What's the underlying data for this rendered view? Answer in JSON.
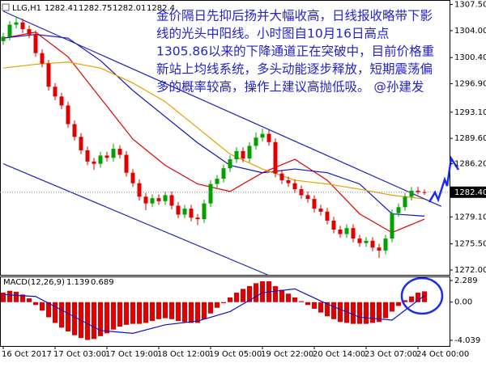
{
  "chart_data": [
    {
      "type": "candlestick",
      "title": "LLG,H1",
      "up_color": "#00a000",
      "down_color": "#e00000",
      "open": [
        1302.6,
        1303.2,
        1304.8,
        1305.1,
        1304.2,
        1303.5,
        1301.0,
        1299.6,
        1296.5,
        1295.2,
        1294.0,
        1291.5,
        1289.8,
        1288.0,
        1286.5,
        1286.2,
        1287.3,
        1287.0,
        1288.2,
        1287.4,
        1285.0,
        1283.6,
        1281.8,
        1280.9,
        1281.6,
        1281.2,
        1282.0,
        1280.6,
        1279.4,
        1280.2,
        1279.0,
        1278.8,
        1280.9,
        1283.5,
        1284.2,
        1285.6,
        1286.8,
        1287.9,
        1286.9,
        1288.6,
        1289.7,
        1290.2,
        1289.1,
        1284.9,
        1284.0,
        1283.6,
        1282.8,
        1282.0,
        1281.5,
        1280.2,
        1279.8,
        1278.6,
        1277.4,
        1276.8,
        1277.6,
        1276.2,
        1275.6,
        1275.9,
        1275.0,
        1274.6,
        1276.2,
        1279.6,
        1280.4,
        1281.8,
        1282.6,
        1282.41
      ],
      "high": [
        1303.7,
        1305.3,
        1305.86,
        1305.6,
        1304.7,
        1304.0,
        1301.5,
        1300.1,
        1297.0,
        1295.7,
        1294.5,
        1292.0,
        1290.3,
        1288.5,
        1287.0,
        1287.8,
        1287.8,
        1288.9,
        1288.7,
        1287.9,
        1285.5,
        1284.1,
        1282.3,
        1282.1,
        1282.1,
        1282.5,
        1282.5,
        1281.1,
        1280.7,
        1280.7,
        1279.5,
        1281.4,
        1284.0,
        1284.7,
        1286.1,
        1287.3,
        1288.4,
        1288.4,
        1289.1,
        1290.4,
        1290.9,
        1290.7,
        1289.6,
        1285.4,
        1284.5,
        1284.1,
        1283.3,
        1282.5,
        1282.0,
        1280.7,
        1280.3,
        1279.1,
        1277.9,
        1278.1,
        1278.1,
        1276.7,
        1276.4,
        1276.4,
        1275.5,
        1276.7,
        1280.1,
        1280.9,
        1282.3,
        1283.1,
        1283.1,
        1282.75
      ],
      "low": [
        1302.1,
        1302.7,
        1304.3,
        1303.7,
        1303.0,
        1300.5,
        1299.1,
        1296.0,
        1294.7,
        1293.5,
        1291.0,
        1289.3,
        1287.5,
        1286.0,
        1285.4,
        1285.7,
        1286.5,
        1286.5,
        1286.9,
        1284.5,
        1283.1,
        1281.3,
        1280.0,
        1280.4,
        1280.7,
        1280.7,
        1280.1,
        1278.9,
        1278.9,
        1278.5,
        1278.0,
        1278.3,
        1280.4,
        1283.0,
        1283.7,
        1285.1,
        1286.3,
        1286.4,
        1286.4,
        1288.1,
        1289.2,
        1288.6,
        1284.4,
        1283.5,
        1283.1,
        1282.3,
        1281.5,
        1281.0,
        1279.7,
        1279.3,
        1278.1,
        1276.9,
        1276.3,
        1276.3,
        1275.7,
        1275.1,
        1275.1,
        1274.5,
        1273.6,
        1274.1,
        1275.7,
        1279.1,
        1279.9,
        1281.3,
        1282.1,
        1282.01
      ],
      "close": [
        1303.2,
        1304.8,
        1305.1,
        1304.2,
        1303.5,
        1301.0,
        1299.6,
        1296.5,
        1295.2,
        1294.0,
        1291.5,
        1289.8,
        1288.0,
        1286.5,
        1286.2,
        1287.3,
        1287.0,
        1288.2,
        1287.4,
        1285.0,
        1283.6,
        1281.8,
        1280.9,
        1281.6,
        1281.2,
        1282.0,
        1280.6,
        1279.4,
        1280.2,
        1279.0,
        1278.8,
        1280.9,
        1283.5,
        1284.2,
        1285.6,
        1286.8,
        1287.9,
        1286.9,
        1288.6,
        1289.7,
        1290.2,
        1289.1,
        1284.9,
        1284.0,
        1283.6,
        1282.8,
        1282.0,
        1281.5,
        1280.2,
        1279.8,
        1278.6,
        1277.4,
        1276.8,
        1277.6,
        1276.2,
        1275.6,
        1275.9,
        1275.0,
        1274.6,
        1276.2,
        1279.6,
        1280.4,
        1281.8,
        1282.6,
        1282.41,
        1282.4
      ],
      "overlays": [
        {
          "color": "#e00000",
          "x": [
            0,
            5,
            10,
            15,
            20,
            25,
            30,
            35,
            40,
            45,
            50,
            55,
            60,
            65
          ],
          "values": [
            1303.0,
            1303.8,
            1300.5,
            1295.0,
            1289.5,
            1286.0,
            1283.5,
            1282.5,
            1285.0,
            1286.8,
            1284.0,
            1279.5,
            1277.0,
            1278.8
          ]
        },
        {
          "color": "#1010c0",
          "x": [
            0,
            5,
            10,
            15,
            20,
            25,
            30,
            35,
            40,
            45,
            50,
            55,
            60,
            65
          ],
          "values": [
            1303.0,
            1303.5,
            1303.0,
            1300.0,
            1296.0,
            1292.5,
            1289.0,
            1286.0,
            1285.0,
            1285.5,
            1285.0,
            1283.5,
            1279.5,
            1279.2
          ]
        },
        {
          "color": "#e8a000",
          "x": [
            0,
            5,
            10,
            15,
            20,
            25,
            30,
            35,
            40,
            45,
            50,
            55,
            60,
            65
          ],
          "values": [
            1299.0,
            1299.5,
            1299.8,
            1299.0,
            1297.0,
            1294.5,
            1291.0,
            1287.5,
            1285.5,
            1284.0,
            1283.5,
            1282.8,
            1282.0,
            1281.5
          ]
        },
        {
          "color": "#2020c0",
          "x": [
            0,
            67.6
          ],
          "values": [
            1306.6,
            1280.5
          ]
        },
        {
          "color": "#2020c0",
          "x": [
            0,
            40.8
          ],
          "values": [
            1286.2,
            1271.35
          ]
        }
      ],
      "ylim": [
        1271.35,
        1308.1
      ],
      "yticks": [
        {
          "value": 1307.5,
          "label": "1307.50"
        },
        {
          "value": 1304,
          "label": "1304.00"
        },
        {
          "value": 1300.4,
          "label": "1300.40"
        },
        {
          "value": 1296.9,
          "label": "1296.90"
        },
        {
          "value": 1293.1,
          "label": "1293.10"
        },
        {
          "value": 1289.6,
          "label": "1289.60"
        },
        {
          "value": 1286.2,
          "label": "1286.20"
        },
        {
          "value": 1279.1,
          "label": "1279.10"
        },
        {
          "value": 1275.5,
          "label": "1275.50"
        },
        {
          "value": 1272,
          "label": "1272.00"
        }
      ],
      "current_price": {
        "value": 1282.4,
        "label": "1282.40"
      },
      "xticks": [
        {
          "value": 0,
          "label": "16 Oct 2017"
        },
        {
          "value": 8,
          "label": "17 Oct 03:00"
        },
        {
          "value": 16,
          "label": "17 Oct 19:00"
        },
        {
          "value": 24,
          "label": "18 Oct 12:00"
        },
        {
          "value": 32,
          "label": "19 Oct 05:00"
        },
        {
          "value": 40,
          "label": "19 Oct 22:00"
        },
        {
          "value": 48,
          "label": "20 Oct 14:00"
        },
        {
          "value": 56,
          "label": "23 Oct 07:00"
        },
        {
          "value": 64,
          "label": "24 Oct 00:00"
        }
      ],
      "annotation": [
        "金价隔日先抑后扬并大幅收高，日线报收略带下影",
        "线的光头中阳线。小时图自10月16日高点",
        "1305.86以来的下降通道正在突破中，目前价格重",
        "新站上均线系统，多头动能逐步释放，短期震荡偏",
        "多的概率较高，操作上建议高抛低吸。    @孙建发"
      ]
    },
    {
      "type": "macd",
      "title": "MACD(12,26,9)",
      "color": "#e00000",
      "signal_color": "#1010c0",
      "values": [
        1.0,
        1.2,
        1.1,
        0.8,
        0.4,
        -0.3,
        -0.9,
        -1.6,
        -2.2,
        -2.7,
        -3.1,
        -3.5,
        -3.8,
        -4.0,
        -3.9,
        -3.6,
        -3.3,
        -2.9,
        -2.6,
        -2.4,
        -2.3,
        -2.3,
        -2.2,
        -2.0,
        -1.8,
        -1.7,
        -1.8,
        -2.0,
        -2.1,
        -2.2,
        -2.2,
        -1.8,
        -1.2,
        -0.6,
        -0.1,
        0.5,
        1.0,
        1.4,
        1.7,
        2.0,
        2.2,
        2.2,
        1.7,
        1.3,
        0.9,
        0.5,
        0.1,
        -0.3,
        -0.7,
        -1.1,
        -1.5,
        -1.8,
        -2.1,
        -2.2,
        -2.3,
        -2.3,
        -2.3,
        -2.2,
        -2.1,
        -1.7,
        -1.0,
        -0.4,
        0.2,
        0.6,
        1.0,
        1.139
      ],
      "signal_x": [
        0,
        5,
        10,
        15,
        20,
        25,
        30,
        35,
        40,
        45,
        50,
        55,
        60,
        65
      ],
      "signal": [
        0.8,
        0.6,
        -1.2,
        -3.0,
        -3.3,
        -2.4,
        -2.0,
        -1.0,
        1.0,
        1.4,
        -0.2,
        -1.6,
        -1.9,
        0.689
      ],
      "ylim": [
        -4.64,
        2.63
      ],
      "yticks": [
        2.289,
        {
          "value": 0,
          "label": "0.00"
        },
        -4.039
      ]
    }
  ]
}
